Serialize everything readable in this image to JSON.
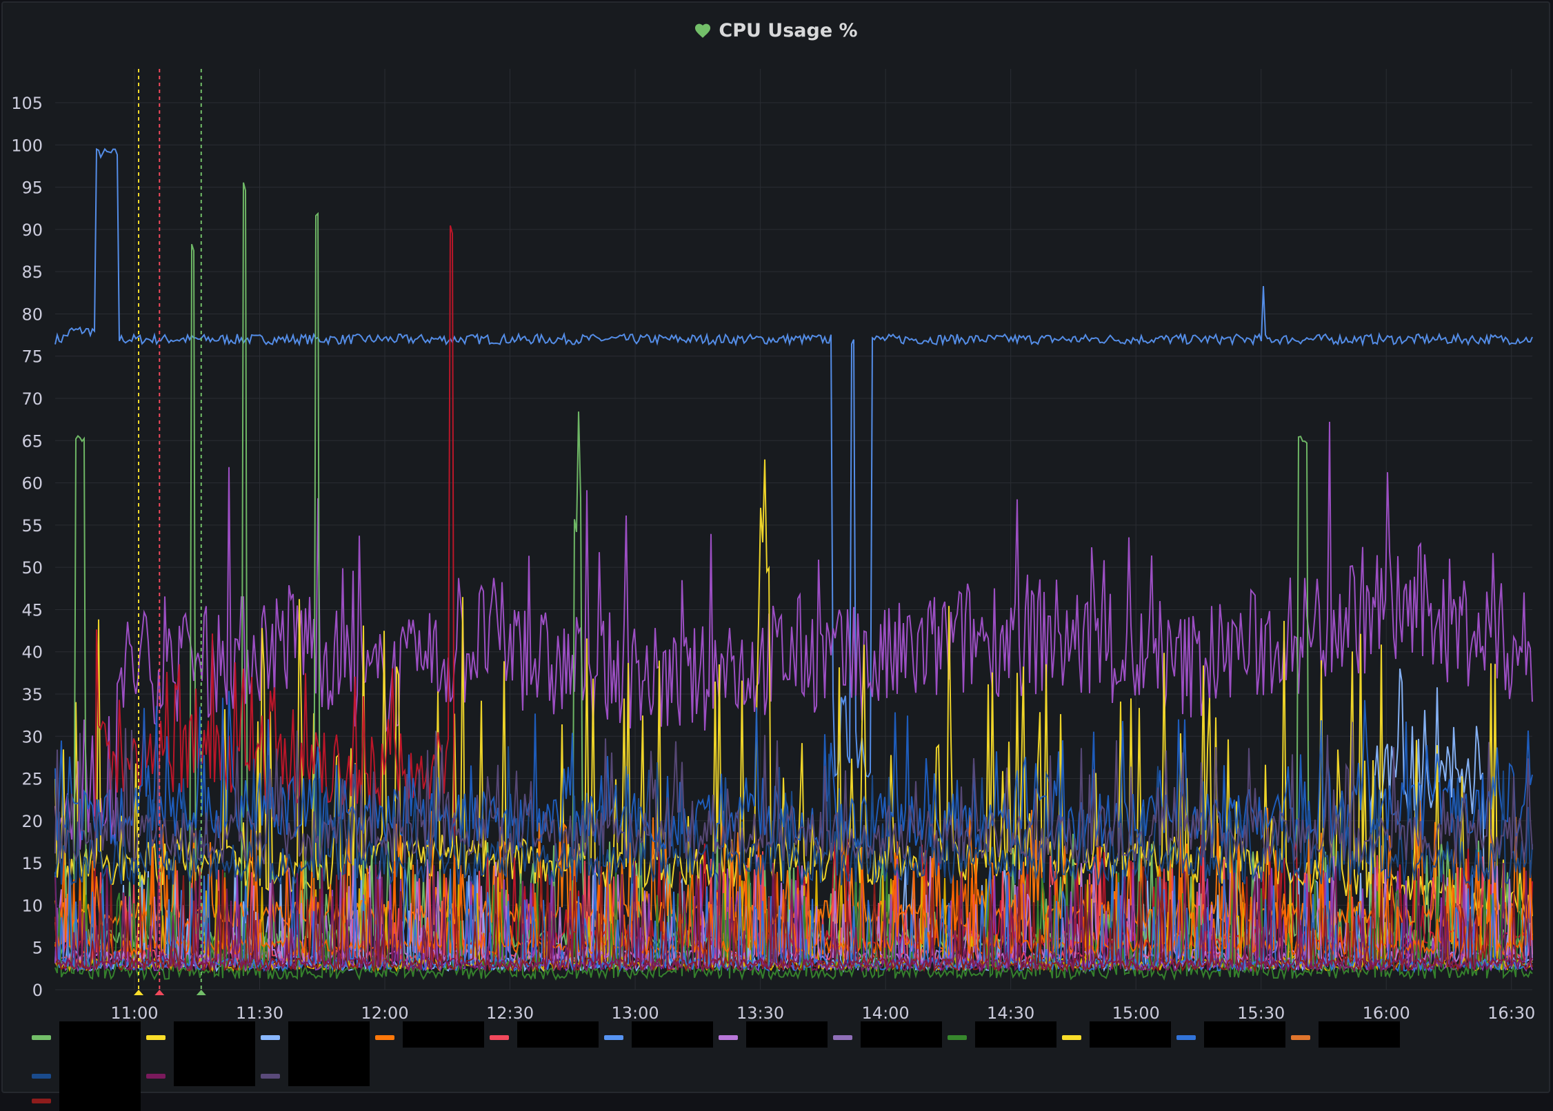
{
  "panel": {
    "title": "CPU Usage %",
    "status_icon": "heart-icon",
    "status_color": "#73bf69"
  },
  "chart_data": {
    "type": "line",
    "title": "CPU Usage %",
    "xlabel": "",
    "ylabel": "",
    "ylim": [
      0,
      109
    ],
    "y_ticks": [
      "0",
      "5",
      "10",
      "15",
      "20",
      "25",
      "30",
      "35",
      "40",
      "45",
      "50",
      "55",
      "60",
      "65",
      "70",
      "75",
      "80",
      "85",
      "90",
      "95",
      "100",
      "105"
    ],
    "x_ticks": [
      "11:00",
      "11:30",
      "12:00",
      "12:30",
      "13:00",
      "13:30",
      "14:00",
      "14:30",
      "15:00",
      "15:30",
      "16:00",
      "16:30"
    ],
    "x_range": [
      "10:41",
      "16:35"
    ],
    "grid": true,
    "annotations": [
      {
        "time": "11:01",
        "color": "#fade2a"
      },
      {
        "time": "11:06",
        "color": "#f2495c"
      },
      {
        "time": "11:16",
        "color": "#73bf69"
      }
    ],
    "series": [
      {
        "color": "#5794f2",
        "approx_values": [
          [
            0,
            77
          ],
          [
            3,
            77
          ],
          [
            8,
            78
          ],
          [
            15,
            78
          ],
          [
            19,
            78
          ],
          [
            20,
            99
          ],
          [
            30,
            99
          ],
          [
            31,
            77
          ],
          [
            60,
            77
          ],
          [
            120,
            77
          ],
          [
            180,
            77
          ],
          [
            240,
            77
          ],
          [
            300,
            77
          ],
          [
            360,
            77
          ],
          [
            375,
            77
          ],
          [
            376,
            30
          ],
          [
            384,
            30
          ],
          [
            385,
            77
          ],
          [
            387,
            30
          ],
          [
            394,
            30
          ],
          [
            395,
            77
          ],
          [
            480,
            77
          ],
          [
            540,
            77
          ],
          [
            583,
            77
          ],
          [
            584,
            83
          ],
          [
            585,
            77
          ],
          [
            640,
            77
          ],
          [
            700,
            77
          ],
          [
            714,
            77
          ]
        ]
      },
      {
        "color": "#a352cc",
        "approx_values": [
          [
            0,
            20
          ],
          [
            30,
            38
          ],
          [
            60,
            38
          ],
          [
            90,
            40
          ],
          [
            120,
            42
          ],
          [
            150,
            36
          ],
          [
            180,
            38
          ],
          [
            210,
            42
          ],
          [
            240,
            38
          ],
          [
            270,
            38
          ],
          [
            300,
            36
          ],
          [
            330,
            38
          ],
          [
            360,
            40
          ],
          [
            390,
            38
          ],
          [
            420,
            40
          ],
          [
            450,
            42
          ],
          [
            480,
            42
          ],
          [
            510,
            40
          ],
          [
            540,
            38
          ],
          [
            570,
            40
          ],
          [
            600,
            42
          ],
          [
            630,
            45
          ],
          [
            660,
            45
          ],
          [
            690,
            42
          ],
          [
            714,
            40
          ]
        ]
      },
      {
        "color": "#8ab8ff",
        "approx_values": [
          [
            0,
            3
          ],
          [
            100,
            3
          ],
          [
            200,
            3
          ],
          [
            300,
            3
          ],
          [
            400,
            3
          ],
          [
            500,
            3
          ],
          [
            600,
            3
          ],
          [
            635,
            3
          ],
          [
            636,
            25
          ],
          [
            690,
            25
          ],
          [
            691,
            3
          ],
          [
            714,
            3
          ]
        ]
      },
      {
        "color": "#fade2a",
        "approx_values": [
          [
            0,
            15
          ],
          [
            60,
            15
          ],
          [
            120,
            14
          ],
          [
            180,
            16
          ],
          [
            240,
            15
          ],
          [
            300,
            14
          ],
          [
            340,
            15
          ],
          [
            341,
            60
          ],
          [
            345,
            60
          ],
          [
            346,
            15
          ],
          [
            400,
            15
          ],
          [
            460,
            15
          ],
          [
            520,
            15
          ],
          [
            580,
            15
          ],
          [
            640,
            12
          ],
          [
            714,
            10
          ]
        ]
      },
      {
        "color": "#73bf69",
        "approx_values": [
          [
            0,
            5
          ],
          [
            10,
            65
          ],
          [
            15,
            6
          ],
          [
            65,
            6
          ],
          [
            66,
            88
          ],
          [
            68,
            6
          ],
          [
            90,
            6
          ],
          [
            91,
            95
          ],
          [
            93,
            6
          ],
          [
            125,
            6
          ],
          [
            126,
            92
          ],
          [
            128,
            6
          ],
          [
            250,
            6
          ],
          [
            251,
            60
          ],
          [
            255,
            6
          ],
          [
            600,
            6
          ],
          [
            601,
            65
          ],
          [
            606,
            6
          ],
          [
            714,
            6
          ]
        ]
      },
      {
        "color": "#c4162a",
        "approx_values": [
          [
            0,
            5
          ],
          [
            20,
            28
          ],
          [
            90,
            28
          ],
          [
            100,
            26
          ],
          [
            190,
            26
          ],
          [
            191,
            90
          ],
          [
            193,
            6
          ],
          [
            714,
            6
          ]
        ]
      },
      {
        "color": "#ff780a",
        "approx_values": [
          [
            0,
            9
          ],
          [
            100,
            9
          ],
          [
            200,
            9
          ],
          [
            300,
            9
          ],
          [
            400,
            9
          ],
          [
            500,
            9
          ],
          [
            600,
            9
          ],
          [
            714,
            9
          ]
        ]
      },
      {
        "color": "#f2495c",
        "approx_values": [
          [
            0,
            4
          ],
          [
            200,
            4
          ],
          [
            400,
            4
          ],
          [
            600,
            4
          ],
          [
            714,
            4
          ]
        ]
      },
      {
        "color": "#1f60c4",
        "approx_values": [
          [
            0,
            20
          ],
          [
            100,
            22
          ],
          [
            200,
            20
          ],
          [
            300,
            20
          ],
          [
            400,
            20
          ],
          [
            500,
            20
          ],
          [
            600,
            20
          ],
          [
            700,
            22
          ],
          [
            714,
            22
          ]
        ]
      },
      {
        "color": "#e0b400",
        "approx_values": [
          [
            0,
            3
          ],
          [
            200,
            3
          ],
          [
            400,
            3
          ],
          [
            600,
            3
          ],
          [
            714,
            3
          ]
        ]
      },
      {
        "color": "#b877d9",
        "approx_values": [
          [
            0,
            4
          ],
          [
            200,
            4
          ],
          [
            400,
            4
          ],
          [
            600,
            4
          ],
          [
            714,
            4
          ]
        ]
      },
      {
        "color": "#8f3bb8",
        "approx_values": [
          [
            0,
            3
          ],
          [
            200,
            3
          ],
          [
            400,
            3
          ],
          [
            600,
            3
          ],
          [
            714,
            3
          ]
        ]
      },
      {
        "color": "#37872d",
        "approx_values": [
          [
            0,
            2
          ],
          [
            200,
            2
          ],
          [
            400,
            2
          ],
          [
            600,
            2
          ],
          [
            714,
            2
          ]
        ]
      },
      {
        "color": "#fa6400",
        "approx_values": [
          [
            0,
            5
          ],
          [
            200,
            5
          ],
          [
            400,
            5
          ],
          [
            600,
            5
          ],
          [
            714,
            5
          ]
        ]
      },
      {
        "color": "#3274d9",
        "approx_values": [
          [
            0,
            3
          ],
          [
            200,
            3
          ],
          [
            400,
            3
          ],
          [
            600,
            3
          ],
          [
            714,
            3
          ]
        ]
      },
      {
        "color": "#8e1c1c",
        "approx_values": [
          [
            0,
            3
          ],
          [
            200,
            3
          ],
          [
            400,
            3
          ],
          [
            600,
            3
          ],
          [
            714,
            3
          ]
        ]
      },
      {
        "color": "#1a4b8c",
        "approx_values": [
          [
            0,
            15
          ],
          [
            200,
            15
          ],
          [
            400,
            15
          ],
          [
            600,
            15
          ],
          [
            714,
            15
          ]
        ]
      },
      {
        "color": "#7a1a5c",
        "approx_values": [
          [
            0,
            3
          ],
          [
            200,
            3
          ],
          [
            400,
            3
          ],
          [
            600,
            3
          ],
          [
            714,
            3
          ]
        ]
      },
      {
        "color": "#5a4a7a",
        "approx_values": [
          [
            0,
            18
          ],
          [
            200,
            18
          ],
          [
            400,
            18
          ],
          [
            600,
            18
          ],
          [
            714,
            18
          ]
        ]
      }
    ]
  },
  "legend": {
    "row1": [
      {
        "color": "#73bf69",
        "label_hidden": true
      },
      {
        "color": "#fade2a",
        "label_hidden": true
      },
      {
        "color": "#8ab8ff",
        "label_hidden": true
      },
      {
        "color": "#ff780a",
        "label_hidden": true
      },
      {
        "color": "#f2495c",
        "label_hidden": true
      },
      {
        "color": "#5794f2",
        "label_hidden": true
      },
      {
        "color": "#b877d9",
        "label_hidden": true
      },
      {
        "color": "#8f6fb8",
        "label_hidden": true
      },
      {
        "color": "#37872d",
        "label_hidden": true
      },
      {
        "color": "#fade2a",
        "label_hidden": true
      },
      {
        "color": "#3274d9",
        "label_hidden": true
      },
      {
        "color": "#e0752d",
        "label_hidden": true
      },
      {
        "color": "#8e1c1c",
        "label_hidden": true
      }
    ],
    "row2": [
      {
        "color": "#1a4b8c",
        "label_hidden": true
      },
      {
        "color": "#7a1a5c",
        "label_hidden": true
      },
      {
        "color": "#5a4a7a",
        "label_hidden": true
      }
    ]
  }
}
